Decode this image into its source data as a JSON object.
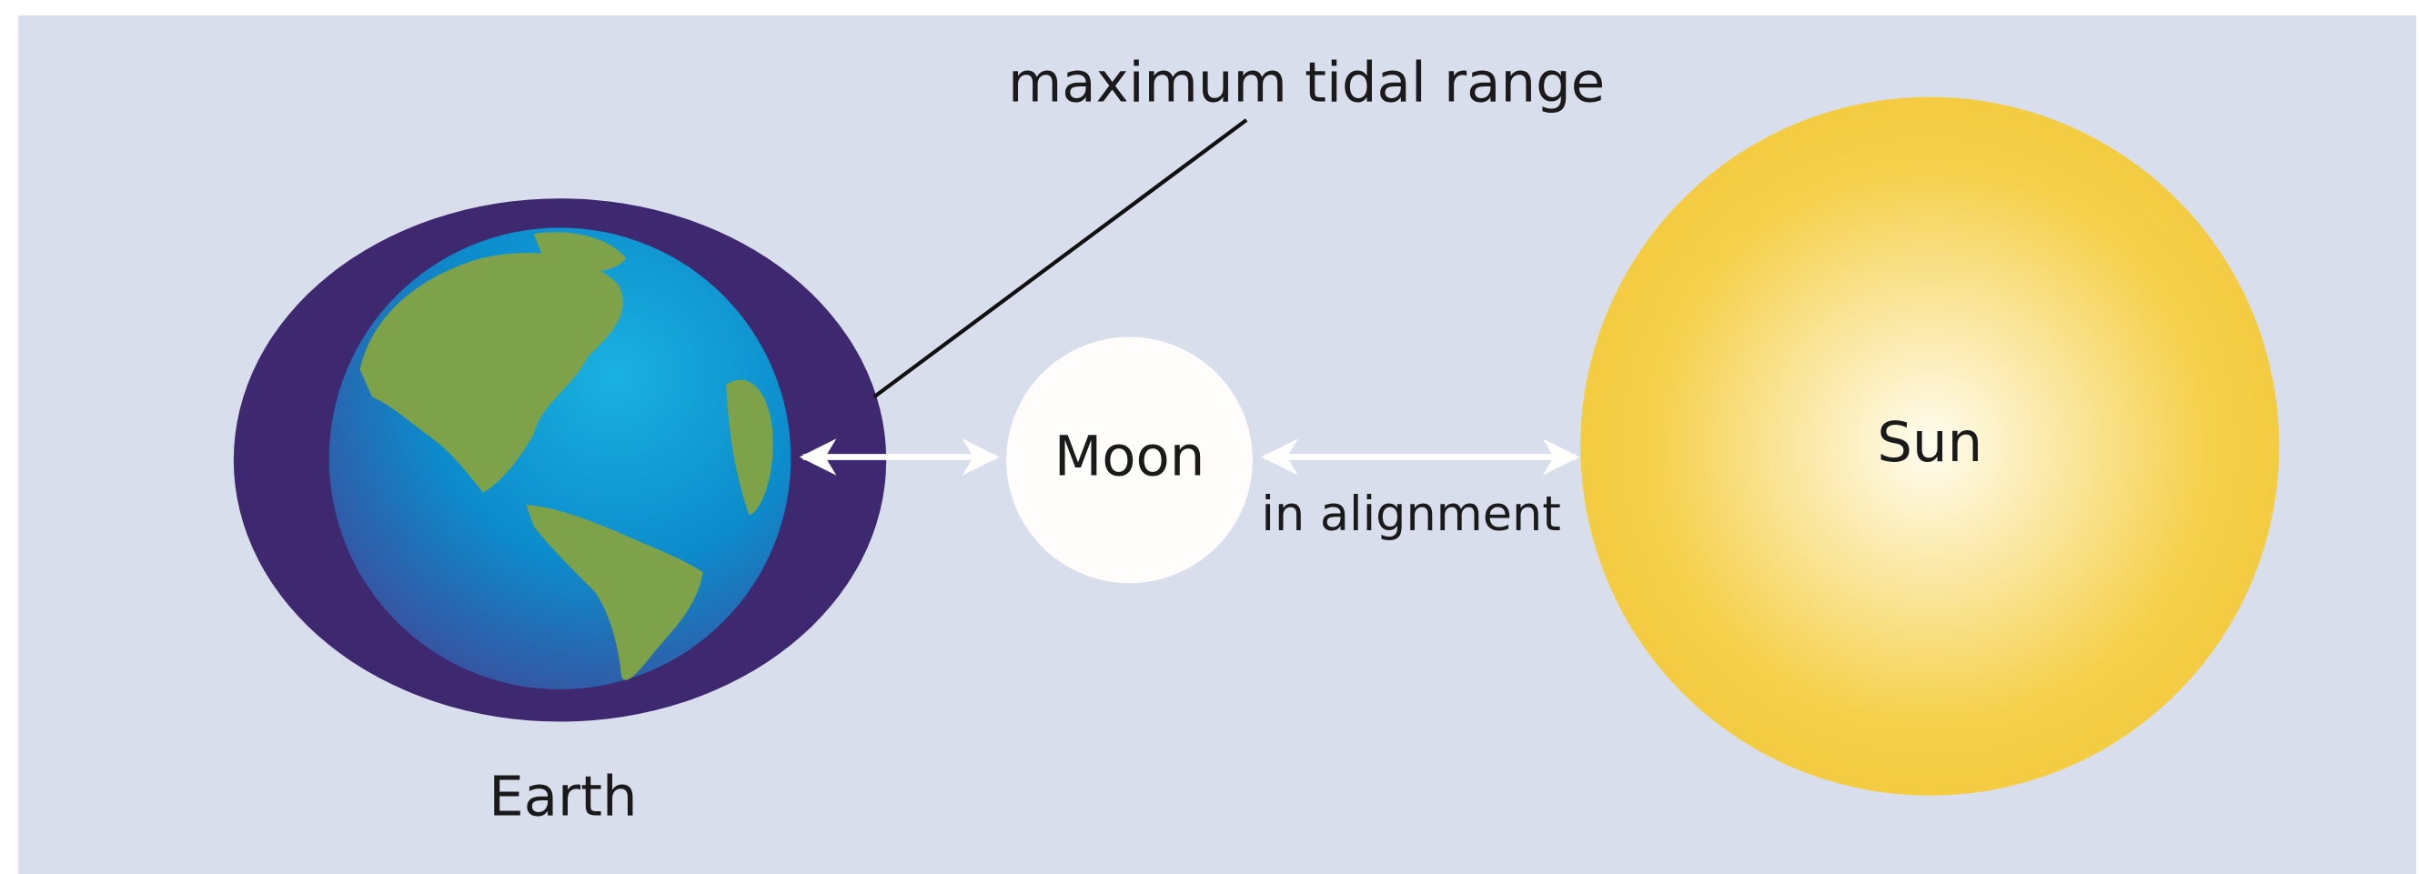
{
  "title": "maximum tidal range",
  "labels": {
    "earth": "Earth",
    "moon": "Moon",
    "sun": "Sun",
    "alignment": "in alignment"
  }
}
